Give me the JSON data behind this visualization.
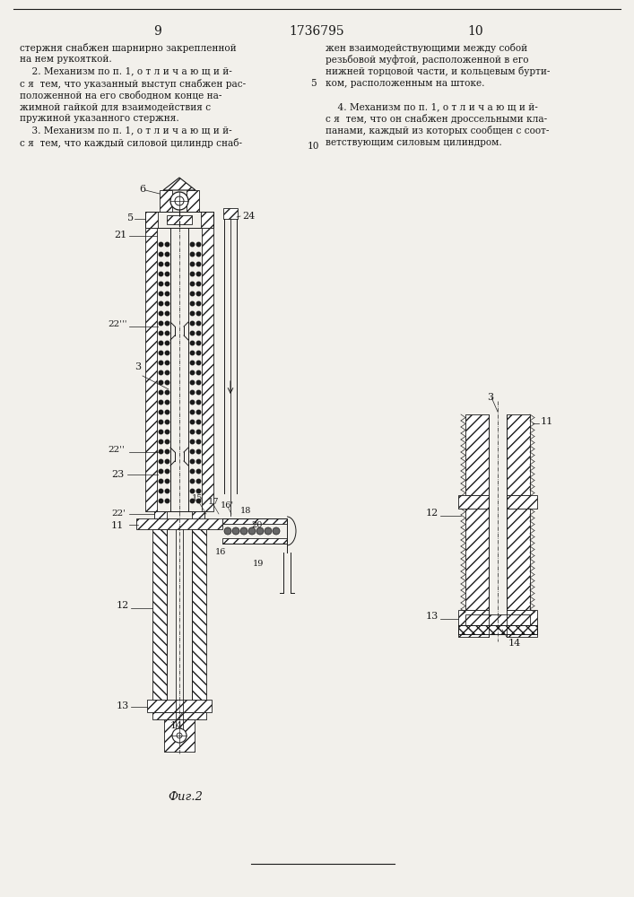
{
  "bg_color": "#f2f0eb",
  "text_color": "#1a1a1a",
  "draw_color": "#1a1a1a",
  "page_left": "9",
  "page_center": "1736795",
  "page_right": "10",
  "fig_label": "Фиг.2",
  "left_col": [
    "стержня снабжен шарнирно закрепленной",
    "на нем рукояткой.",
    "    2. Механизм по п. 1, о т л и ч а ю щ и й-",
    "с я  тем, что указанный выступ снабжен рас-",
    "положенной на его свободном конце на-",
    "жимной гайкой для взаимодействия с",
    "пружиной указанного стержня.",
    "    3. Механизм по п. 1, о т л и ч а ю щ и й-",
    "с я  тем, что каждый силовой цилиндр снаб-"
  ],
  "right_col": [
    "жен взаимодействующими между собой",
    "резьбовой муфтой, расположенной в его",
    "нижней торцовой части, и кольцевым бурти-",
    "ком, расположенным на штоке.",
    "",
    "    4. Механизм по п. 1, о т л и ч а ю щ и й-",
    "с я  тем, что он снабжен дроссельными кла-",
    "панами, каждый из которых сообщен с соот-",
    "ветствующим силовым цилиндром."
  ]
}
